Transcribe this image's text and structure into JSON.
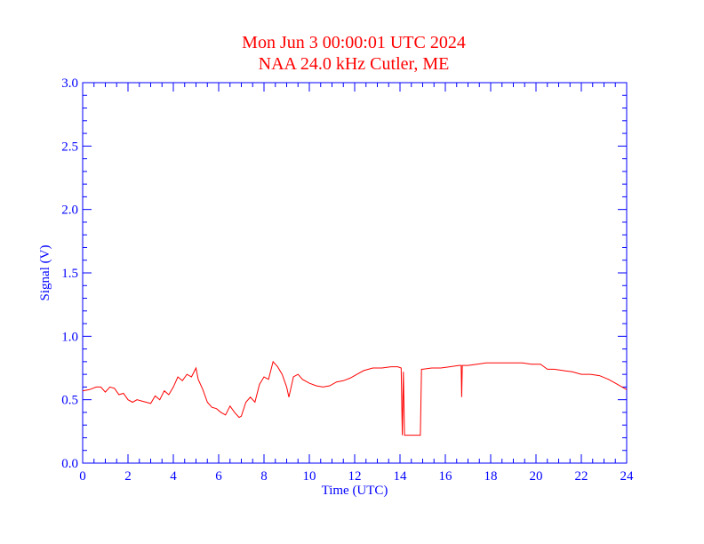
{
  "colors": {
    "title": "#ff0000",
    "axis": "#0000ff",
    "series": "#ff0000",
    "background": "#ffffff"
  },
  "chart_data": {
    "type": "line",
    "title": "Mon Jun 3 00:00:01 UTC 2024",
    "subtitle": "NAA 24.0 kHz Cutler, ME",
    "xlabel": "Time (UTC)",
    "ylabel": "Signal (V)",
    "xlim": [
      0,
      24
    ],
    "ylim": [
      0,
      3
    ],
    "xticks": [
      "0",
      "2",
      "4",
      "6",
      "8",
      "10",
      "12",
      "14",
      "16",
      "18",
      "20",
      "22",
      "24"
    ],
    "yticks": [
      "0.0",
      "0.5",
      "1.0",
      "1.5",
      "2.0",
      "2.5",
      "3.0"
    ],
    "grid": false,
    "series": [
      {
        "x": [
          0,
          0.3,
          0.6,
          0.8,
          1.0,
          1.2,
          1.4,
          1.6,
          1.8,
          2.0,
          2.2,
          2.4,
          2.6,
          2.8,
          3.0,
          3.2,
          3.4,
          3.6,
          3.8,
          4.0,
          4.2,
          4.4,
          4.6,
          4.8,
          5.0,
          5.1,
          5.3,
          5.5,
          5.7,
          5.9,
          6.1,
          6.3,
          6.5,
          6.7,
          6.9,
          7.0,
          7.2,
          7.4,
          7.6,
          7.8,
          8.0,
          8.2,
          8.4,
          8.6,
          8.8,
          9.0,
          9.1,
          9.3,
          9.5,
          9.7,
          10.0,
          10.3,
          10.6,
          10.9,
          11.2,
          11.5,
          11.8,
          12.1,
          12.4,
          12.8,
          13.2,
          13.6,
          13.9,
          14.05,
          14.1,
          14.15,
          14.2,
          14.4,
          14.6,
          14.8,
          14.9,
          14.95,
          15.0,
          15.4,
          15.8,
          16.2,
          16.6,
          16.7,
          16.72,
          16.75,
          17.0,
          17.4,
          17.8,
          18.2,
          18.6,
          19.0,
          19.4,
          19.8,
          20.2,
          20.5,
          20.8,
          21.2,
          21.6,
          22.0,
          22.4,
          22.8,
          23.2,
          23.5,
          23.8,
          24.0
        ],
        "values": [
          0.57,
          0.58,
          0.6,
          0.6,
          0.56,
          0.6,
          0.59,
          0.54,
          0.55,
          0.5,
          0.48,
          0.5,
          0.49,
          0.48,
          0.47,
          0.53,
          0.5,
          0.57,
          0.54,
          0.6,
          0.68,
          0.65,
          0.7,
          0.68,
          0.75,
          0.66,
          0.58,
          0.48,
          0.44,
          0.43,
          0.4,
          0.38,
          0.45,
          0.4,
          0.36,
          0.37,
          0.48,
          0.52,
          0.48,
          0.62,
          0.68,
          0.66,
          0.8,
          0.76,
          0.7,
          0.6,
          0.52,
          0.68,
          0.7,
          0.66,
          0.63,
          0.61,
          0.6,
          0.61,
          0.64,
          0.65,
          0.67,
          0.7,
          0.73,
          0.75,
          0.75,
          0.76,
          0.76,
          0.75,
          0.22,
          0.72,
          0.22,
          0.22,
          0.22,
          0.22,
          0.22,
          0.74,
          0.74,
          0.75,
          0.75,
          0.76,
          0.77,
          0.77,
          0.52,
          0.77,
          0.77,
          0.78,
          0.79,
          0.79,
          0.79,
          0.79,
          0.79,
          0.78,
          0.78,
          0.74,
          0.74,
          0.73,
          0.72,
          0.7,
          0.7,
          0.69,
          0.66,
          0.63,
          0.6,
          0.58
        ]
      }
    ]
  }
}
